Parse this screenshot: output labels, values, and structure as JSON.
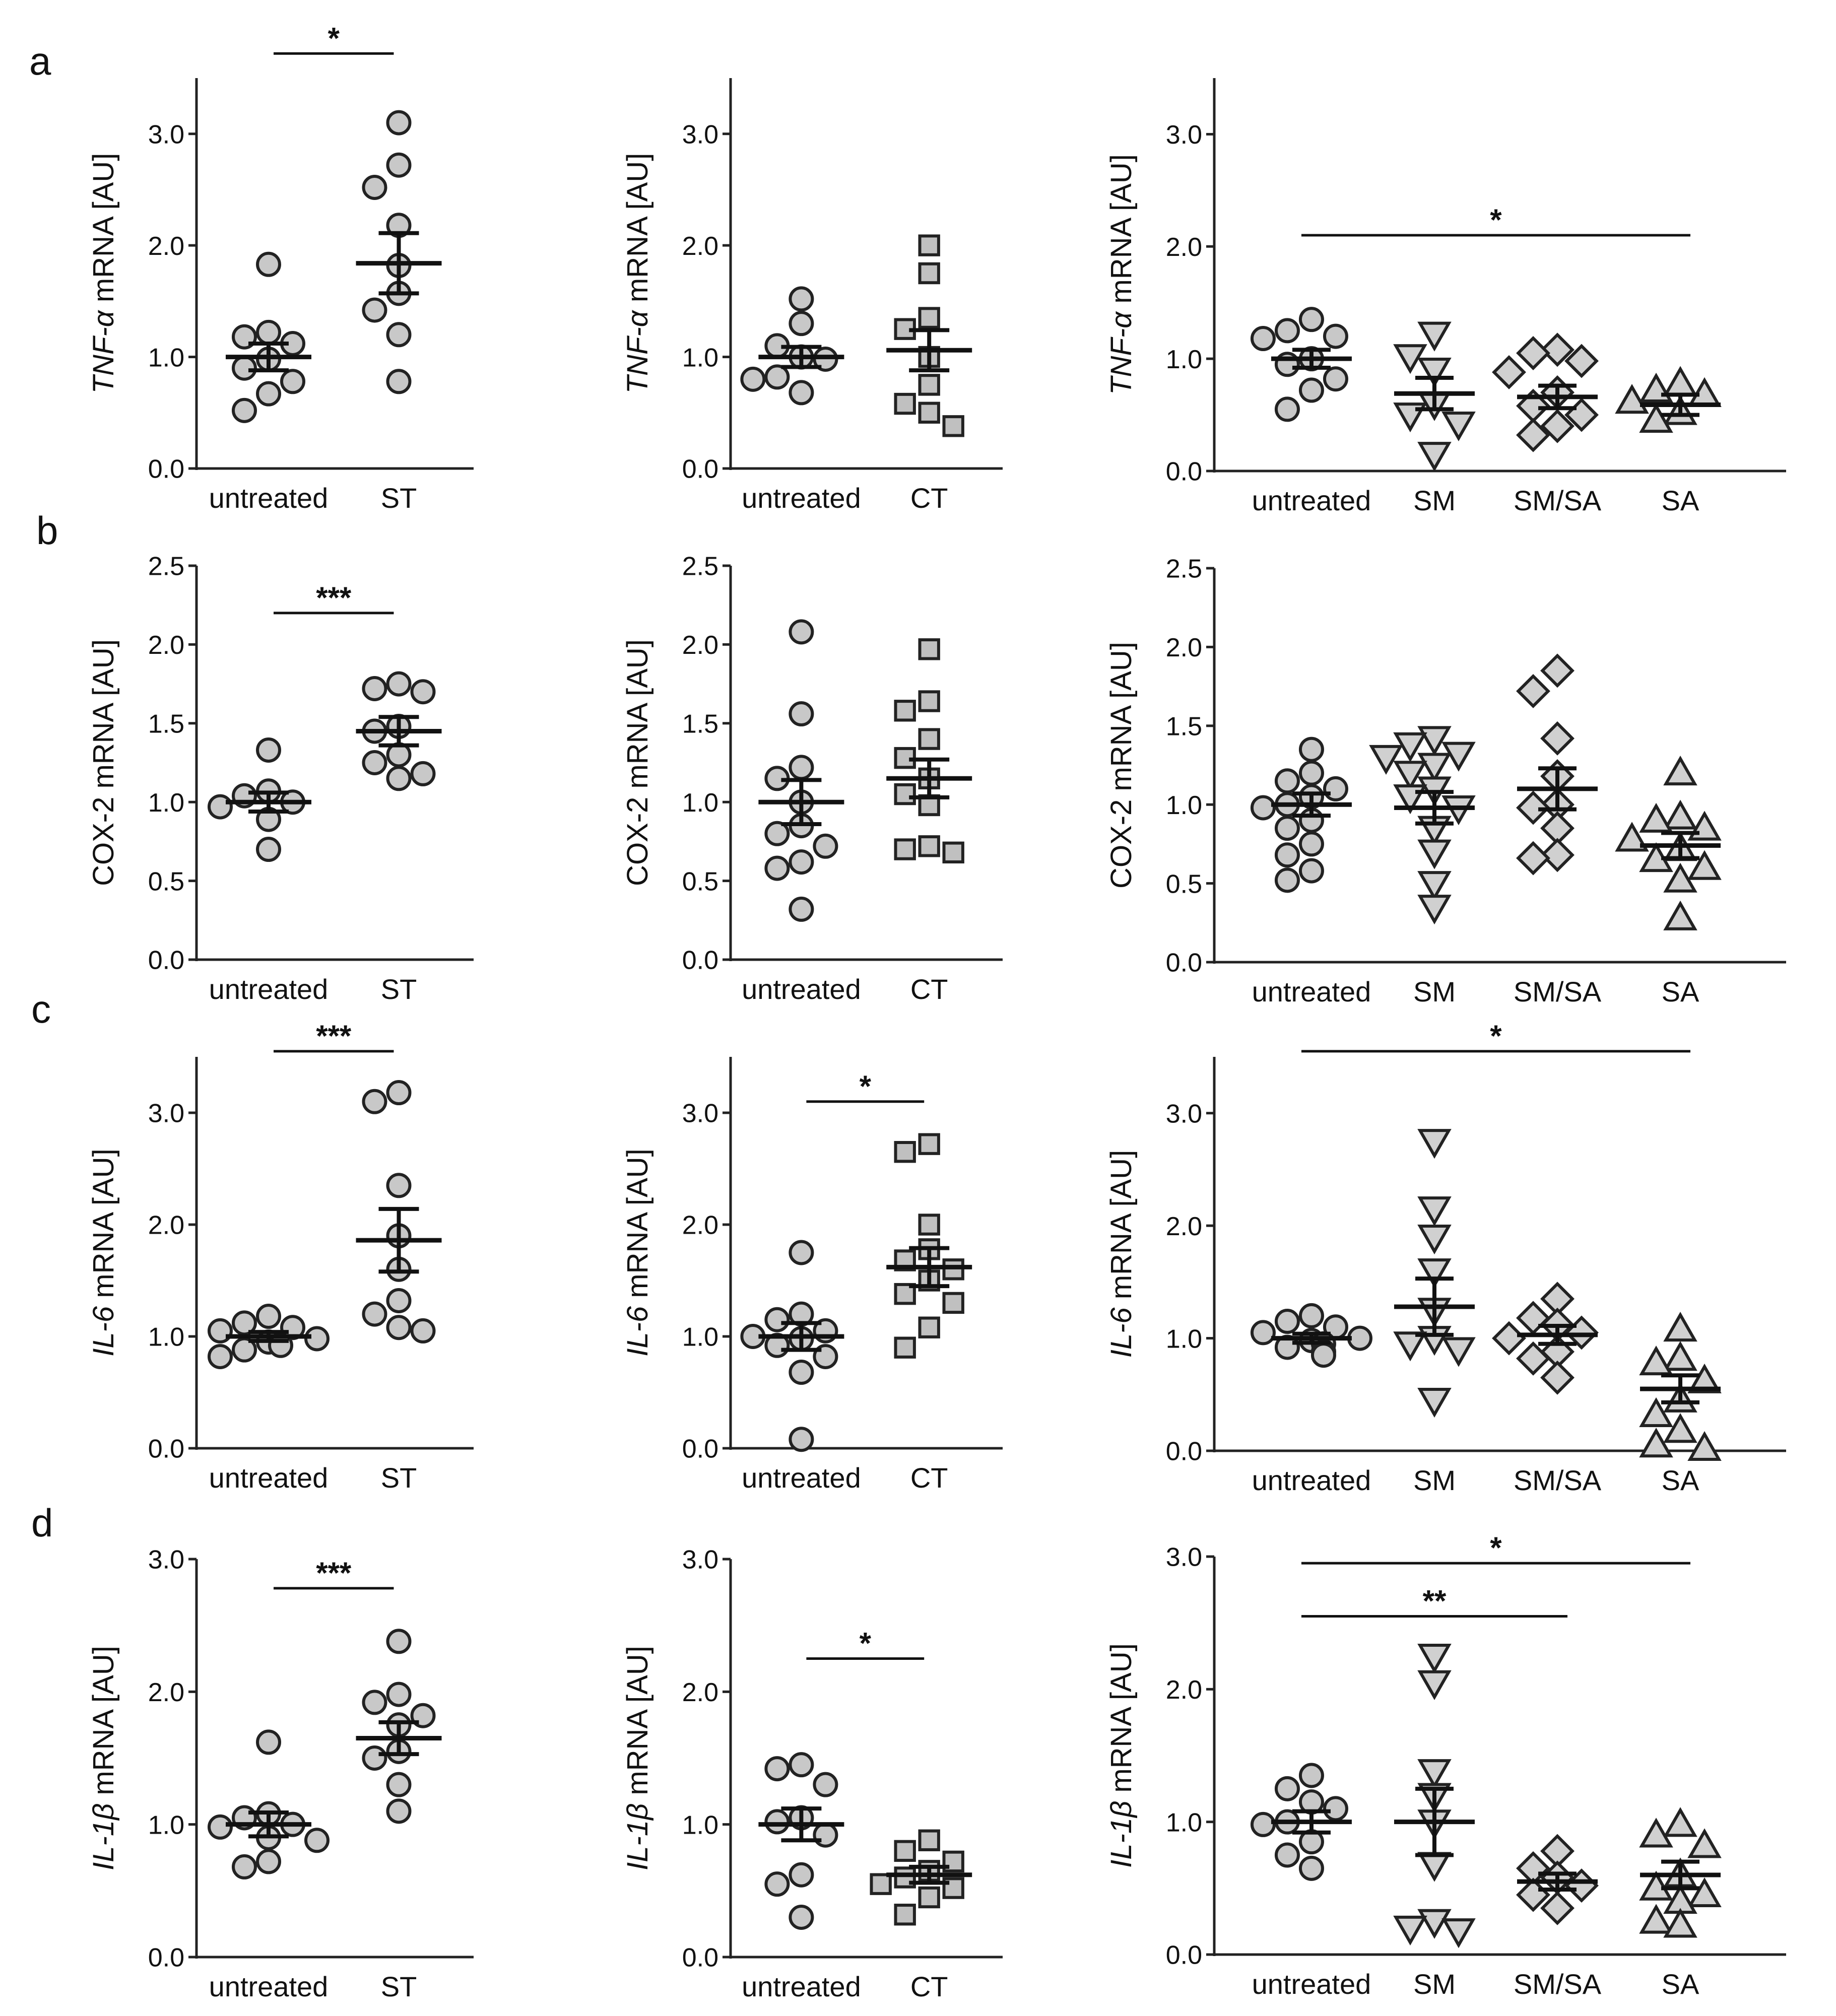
{
  "figure": {
    "row_labels": [
      "a",
      "b",
      "c",
      "d"
    ]
  },
  "chart_data": [
    {
      "panel": "a",
      "type": "scatter",
      "ylabel_italic": "TNF-α",
      "ylabel_rest": " mRNA [AU]",
      "ylim": [
        0,
        3.5
      ],
      "yticks": [
        0,
        1,
        2,
        3
      ],
      "ytick_labels": [
        "0.0",
        "1.0",
        "2.0",
        "3.0"
      ],
      "categories": [
        "untreated",
        "ST"
      ],
      "groups": [
        {
          "marker": "circle",
          "points": [
            1.83,
            1.22,
            1.18,
            1.12,
            0.98,
            0.9,
            0.78,
            0.67,
            0.52
          ],
          "mean": 1.0,
          "sem": 0.12
        },
        {
          "marker": "circle",
          "points": [
            3.1,
            2.72,
            2.52,
            2.18,
            1.82,
            1.57,
            1.42,
            1.2,
            0.78
          ],
          "mean": 1.84,
          "sem": 0.27
        }
      ],
      "comparisons": [
        {
          "from": 0,
          "to": 1,
          "label": "*",
          "y": 3.72
        }
      ]
    },
    {
      "panel": "a",
      "type": "scatter",
      "ylabel_italic": "TNF-α",
      "ylabel_rest": " mRNA [AU]",
      "ylim": [
        0,
        3.5
      ],
      "yticks": [
        0,
        1,
        2,
        3
      ],
      "ytick_labels": [
        "0.0",
        "1.0",
        "2.0",
        "3.0"
      ],
      "categories": [
        "untreated",
        "CT"
      ],
      "groups": [
        {
          "marker": "circle",
          "points": [
            1.52,
            1.3,
            1.1,
            1.0,
            0.98,
            0.82,
            0.8,
            0.68
          ],
          "mean": 1.0,
          "sem": 0.09
        },
        {
          "marker": "square",
          "points": [
            2.0,
            1.75,
            1.35,
            1.25,
            1.0,
            0.75,
            0.58,
            0.5,
            0.38
          ],
          "mean": 1.06,
          "sem": 0.18
        }
      ],
      "comparisons": []
    },
    {
      "panel": "a",
      "type": "scatter",
      "ylabel_italic": "TNF-α",
      "ylabel_rest": " mRNA [AU]",
      "ylim": [
        0,
        3.5
      ],
      "yticks": [
        0,
        1,
        2,
        3
      ],
      "ytick_labels": [
        "0.0",
        "1.0",
        "2.0",
        "3.0"
      ],
      "categories": [
        "untreated",
        "SM",
        "SM/SA",
        "SA"
      ],
      "groups": [
        {
          "marker": "circle",
          "points": [
            1.35,
            1.25,
            1.2,
            1.18,
            1.0,
            0.95,
            0.82,
            0.72,
            0.55
          ],
          "mean": 1.0,
          "sem": 0.08
        },
        {
          "marker": "triangle-down",
          "points": [
            1.22,
            1.02,
            0.9,
            0.6,
            0.5,
            0.42,
            0.15
          ],
          "mean": 0.69,
          "sem": 0.14
        },
        {
          "marker": "diamond",
          "points": [
            1.08,
            1.05,
            0.98,
            0.88,
            0.7,
            0.58,
            0.5,
            0.4,
            0.32
          ],
          "mean": 0.66,
          "sem": 0.1
        },
        {
          "marker": "triangle-up",
          "points": [
            0.78,
            0.72,
            0.68,
            0.62,
            0.52,
            0.45
          ],
          "mean": 0.59,
          "sem": 0.09
        }
      ],
      "comparisons": [
        {
          "from": 0,
          "to": 3,
          "label": "*",
          "y": 2.1
        }
      ]
    },
    {
      "panel": "b",
      "type": "scatter",
      "ylabel_italic": "",
      "ylabel_rest": "COX-2 mRNA [AU]",
      "ylim": [
        0,
        2.5
      ],
      "yticks": [
        0,
        0.5,
        1,
        1.5,
        2,
        2.5
      ],
      "ytick_labels": [
        "0.0",
        "0.5",
        "1.0",
        "1.5",
        "2.0",
        "2.5"
      ],
      "categories": [
        "untreated",
        "ST"
      ],
      "groups": [
        {
          "marker": "circle",
          "points": [
            1.33,
            1.07,
            1.04,
            1.0,
            0.97,
            0.89,
            0.7
          ],
          "mean": 1.0,
          "sem": 0.06
        },
        {
          "marker": "circle",
          "points": [
            1.75,
            1.72,
            1.7,
            1.48,
            1.45,
            1.3,
            1.25,
            1.18,
            1.15
          ],
          "mean": 1.45,
          "sem": 0.09
        }
      ],
      "comparisons": [
        {
          "from": 0,
          "to": 1,
          "label": "***",
          "y": 2.2
        }
      ]
    },
    {
      "panel": "b",
      "type": "scatter",
      "ylabel_italic": "",
      "ylabel_rest": "COX-2 mRNA [AU]",
      "ylim": [
        0,
        2.5
      ],
      "yticks": [
        0,
        0.5,
        1,
        1.5,
        2,
        2.5
      ],
      "ytick_labels": [
        "0.0",
        "0.5",
        "1.0",
        "1.5",
        "2.0",
        "2.5"
      ],
      "categories": [
        "untreated",
        "CT"
      ],
      "groups": [
        {
          "marker": "circle",
          "points": [
            2.08,
            1.56,
            1.22,
            1.15,
            1.0,
            0.85,
            0.8,
            0.72,
            0.62,
            0.58,
            0.32
          ],
          "mean": 1.0,
          "sem": 0.14
        },
        {
          "marker": "square",
          "points": [
            1.97,
            1.64,
            1.58,
            1.4,
            1.28,
            1.15,
            1.05,
            0.98,
            0.72,
            0.7,
            0.68
          ],
          "mean": 1.15,
          "sem": 0.12
        }
      ],
      "comparisons": []
    },
    {
      "panel": "b",
      "type": "scatter",
      "ylabel_italic": "",
      "ylabel_rest": "COX-2 mRNA [AU]",
      "ylim": [
        0,
        2.5
      ],
      "yticks": [
        0,
        0.5,
        1,
        1.5,
        2,
        2.5
      ],
      "ytick_labels": [
        "0.0",
        "0.5",
        "1.0",
        "1.5",
        "2.0",
        "2.5"
      ],
      "categories": [
        "untreated",
        "SM",
        "SM/SA",
        "SA"
      ],
      "groups": [
        {
          "marker": "circle",
          "points": [
            1.35,
            1.2,
            1.15,
            1.1,
            1.05,
            1.0,
            0.98,
            0.9,
            0.85,
            0.75,
            0.68,
            0.58,
            0.52
          ],
          "mean": 1.0,
          "sem": 0.07
        },
        {
          "marker": "triangle-down",
          "points": [
            1.42,
            1.38,
            1.32,
            1.3,
            1.25,
            1.2,
            1.1,
            1.05,
            0.98,
            0.85,
            0.7,
            0.5,
            0.35
          ],
          "mean": 0.98,
          "sem": 0.1
        },
        {
          "marker": "diamond",
          "points": [
            1.85,
            1.72,
            1.42,
            1.18,
            1.0,
            0.98,
            0.85,
            0.68,
            0.66
          ],
          "mean": 1.1,
          "sem": 0.13
        },
        {
          "marker": "triangle-up",
          "points": [
            1.2,
            0.92,
            0.9,
            0.85,
            0.78,
            0.72,
            0.65,
            0.6,
            0.52,
            0.28
          ],
          "mean": 0.74,
          "sem": 0.08
        }
      ],
      "comparisons": []
    },
    {
      "panel": "c",
      "type": "scatter",
      "ylabel_italic": "IL-6",
      "ylabel_rest": " mRNA [AU]",
      "ylim": [
        0,
        3.5
      ],
      "yticks": [
        0,
        1,
        2,
        3
      ],
      "ytick_labels": [
        "0.0",
        "1.0",
        "2.0",
        "3.0"
      ],
      "categories": [
        "untreated",
        "ST"
      ],
      "groups": [
        {
          "marker": "circle",
          "points": [
            1.18,
            1.12,
            1.08,
            1.05,
            0.98,
            0.95,
            0.92,
            0.88,
            0.82
          ],
          "mean": 1.0,
          "sem": 0.04
        },
        {
          "marker": "circle",
          "points": [
            3.18,
            3.1,
            2.35,
            1.9,
            1.6,
            1.32,
            1.2,
            1.08,
            1.05
          ],
          "mean": 1.86,
          "sem": 0.28
        }
      ],
      "comparisons": [
        {
          "from": 0,
          "to": 1,
          "label": "***",
          "y": 3.55
        }
      ]
    },
    {
      "panel": "c",
      "type": "scatter",
      "ylabel_italic": "IL-6",
      "ylabel_rest": " mRNA [AU]",
      "ylim": [
        0,
        3.5
      ],
      "yticks": [
        0,
        1,
        2,
        3
      ],
      "ytick_labels": [
        "0.0",
        "1.0",
        "2.0",
        "3.0"
      ],
      "categories": [
        "untreated",
        "CT"
      ],
      "groups": [
        {
          "marker": "circle",
          "points": [
            1.75,
            1.2,
            1.15,
            1.05,
            1.0,
            0.98,
            0.92,
            0.82,
            0.68,
            0.08
          ],
          "mean": 1.0,
          "sem": 0.12
        },
        {
          "marker": "square",
          "points": [
            2.72,
            2.65,
            2.0,
            1.78,
            1.68,
            1.6,
            1.5,
            1.38,
            1.3,
            1.08,
            0.9
          ],
          "mean": 1.62,
          "sem": 0.17
        }
      ],
      "comparisons": [
        {
          "from": 0,
          "to": 1,
          "label": "*",
          "y": 3.1
        }
      ]
    },
    {
      "panel": "c",
      "type": "scatter",
      "ylabel_italic": "IL-6",
      "ylabel_rest": " mRNA [AU]",
      "ylim": [
        0,
        3.5
      ],
      "yticks": [
        0,
        1,
        2,
        3
      ],
      "ytick_labels": [
        "0.0",
        "1.0",
        "2.0",
        "3.0"
      ],
      "categories": [
        "untreated",
        "SM",
        "SM/SA",
        "SA"
      ],
      "groups": [
        {
          "marker": "circle",
          "points": [
            1.2,
            1.15,
            1.1,
            1.05,
            1.0,
            0.98,
            0.95,
            0.92,
            0.88,
            0.85
          ],
          "mean": 1.0,
          "sem": 0.04
        },
        {
          "marker": "triangle-down",
          "points": [
            2.75,
            2.15,
            1.9,
            1.6,
            1.25,
            1.0,
            0.95,
            0.9,
            0.45
          ],
          "mean": 1.28,
          "sem": 0.25
        },
        {
          "marker": "diamond",
          "points": [
            1.35,
            1.18,
            1.12,
            1.05,
            1.0,
            0.88,
            0.82,
            0.65
          ],
          "mean": 1.03,
          "sem": 0.08
        },
        {
          "marker": "triangle-up",
          "points": [
            1.08,
            0.82,
            0.78,
            0.62,
            0.45,
            0.32,
            0.18,
            0.05,
            0.02
          ],
          "mean": 0.55,
          "sem": 0.12
        }
      ],
      "comparisons": [
        {
          "from": 0,
          "to": 3,
          "label": "*",
          "y": 3.55
        }
      ]
    },
    {
      "panel": "d",
      "type": "scatter",
      "ylabel_italic": "IL-1β",
      "ylabel_rest": " mRNA [AU]",
      "ylim": [
        0,
        3.0
      ],
      "yticks": [
        0,
        1,
        2,
        3
      ],
      "ytick_labels": [
        "0.0",
        "1.0",
        "2.0",
        "3.0"
      ],
      "categories": [
        "untreated",
        "ST"
      ],
      "groups": [
        {
          "marker": "circle",
          "points": [
            1.62,
            1.08,
            1.05,
            1.0,
            0.98,
            0.9,
            0.88,
            0.72,
            0.68
          ],
          "mean": 1.0,
          "sem": 0.09
        },
        {
          "marker": "circle",
          "points": [
            2.38,
            1.98,
            1.92,
            1.82,
            1.75,
            1.55,
            1.5,
            1.3,
            1.1
          ],
          "mean": 1.65,
          "sem": 0.12
        }
      ],
      "comparisons": [
        {
          "from": 0,
          "to": 1,
          "label": "***",
          "y": 2.78
        }
      ]
    },
    {
      "panel": "d",
      "type": "scatter",
      "ylabel_italic": "IL-1β",
      "ylabel_rest": " mRNA [AU]",
      "ylim": [
        0,
        3.0
      ],
      "yticks": [
        0,
        1,
        2,
        3
      ],
      "ytick_labels": [
        "0.0",
        "1.0",
        "2.0",
        "3.0"
      ],
      "categories": [
        "untreated",
        "CT"
      ],
      "groups": [
        {
          "marker": "circle",
          "points": [
            1.45,
            1.42,
            1.3,
            1.05,
            1.02,
            0.92,
            0.62,
            0.55,
            0.3
          ],
          "mean": 1.0,
          "sem": 0.12
        },
        {
          "marker": "square",
          "points": [
            0.88,
            0.8,
            0.72,
            0.65,
            0.6,
            0.55,
            0.52,
            0.45,
            0.32
          ],
          "mean": 0.62,
          "sem": 0.06
        }
      ],
      "comparisons": [
        {
          "from": 0,
          "to": 1,
          "label": "*",
          "y": 2.25
        }
      ]
    },
    {
      "panel": "d",
      "type": "scatter",
      "ylabel_italic": "IL-1β",
      "ylabel_rest": " mRNA [AU]",
      "ylim": [
        0,
        3.0
      ],
      "yticks": [
        0,
        1,
        2,
        3
      ],
      "ytick_labels": [
        "0.0",
        "1.0",
        "2.0",
        "3.0"
      ],
      "categories": [
        "untreated",
        "SM",
        "SM/SA",
        "SA"
      ],
      "groups": [
        {
          "marker": "circle",
          "points": [
            1.35,
            1.25,
            1.15,
            1.1,
            1.0,
            0.98,
            0.85,
            0.75,
            0.65
          ],
          "mean": 1.0,
          "sem": 0.08
        },
        {
          "marker": "triangle-down",
          "points": [
            2.25,
            2.05,
            1.38,
            1.2,
            1.0,
            0.68,
            0.25,
            0.2,
            0.18
          ],
          "mean": 1.0,
          "sem": 0.25
        },
        {
          "marker": "diamond",
          "points": [
            0.78,
            0.65,
            0.58,
            0.52,
            0.45,
            0.35
          ],
          "mean": 0.55,
          "sem": 0.06
        },
        {
          "marker": "triangle-up",
          "points": [
            0.98,
            0.9,
            0.82,
            0.6,
            0.5,
            0.45,
            0.4,
            0.25,
            0.22
          ],
          "mean": 0.6,
          "sem": 0.1
        }
      ],
      "comparisons": [
        {
          "from": 0,
          "to": 2,
          "label": "**",
          "y": 2.55
        },
        {
          "from": 0,
          "to": 3,
          "label": "*",
          "y": 2.95
        }
      ]
    }
  ]
}
